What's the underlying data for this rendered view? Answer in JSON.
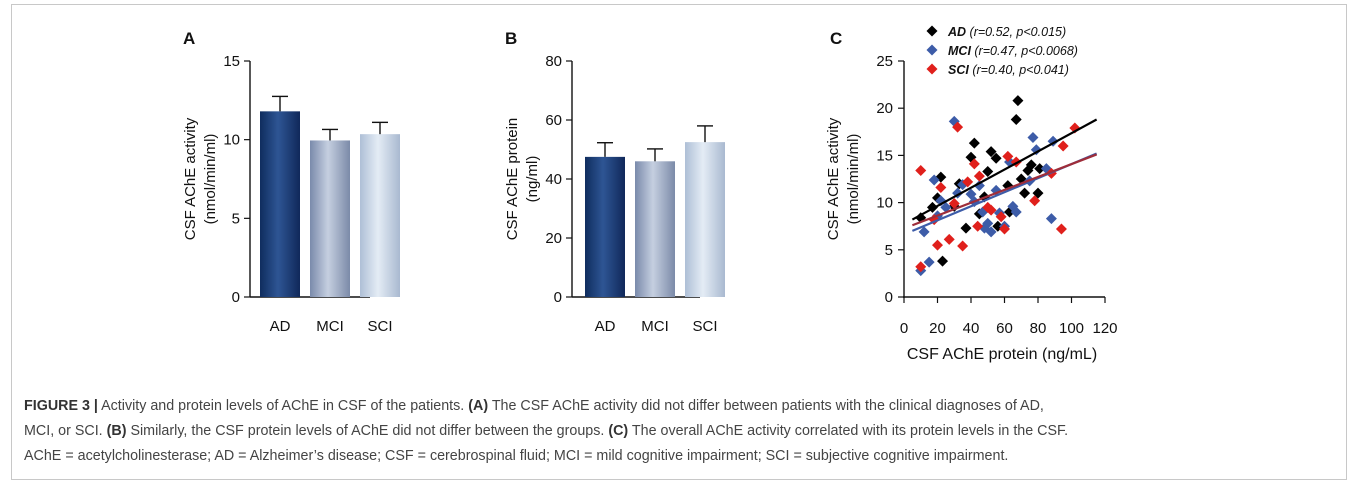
{
  "chart_data": [
    {
      "panel": "A",
      "type": "bar",
      "categories": [
        "AD",
        "MCI",
        "SCI"
      ],
      "values": [
        11.8,
        9.95,
        10.35
      ],
      "errors": [
        0.95,
        0.7,
        0.75
      ],
      "ylabel": "CSF AChE activity\n(nmol/min/ml)",
      "ylim": [
        0,
        15
      ],
      "yticks": [
        "0",
        "5",
        "10",
        "15"
      ],
      "colors": [
        "#1e3f78",
        "#9ba9c4",
        "#c9d6e6"
      ]
    },
    {
      "panel": "B",
      "type": "bar",
      "categories": [
        "AD",
        "MCI",
        "SCI"
      ],
      "values": [
        47.5,
        46,
        52.5
      ],
      "errors": [
        4.8,
        4.2,
        5.5
      ],
      "ylabel": "CSF AChE protein\n(ng/ml)",
      "ylim": [
        0,
        80
      ],
      "yticks": [
        "0",
        "20",
        "40",
        "60",
        "80"
      ],
      "colors": [
        "#1e3f78",
        "#9ba9c4",
        "#c9d6e6"
      ]
    },
    {
      "panel": "C",
      "type": "scatter",
      "xlabel": "CSF AChE protein  (ng/mL)",
      "ylabel": "CSF AChE activity\n(nmol/min/ml)",
      "xlim": [
        0,
        120
      ],
      "ylim": [
        0,
        25
      ],
      "xticks": [
        "0",
        "20",
        "40",
        "60",
        "80",
        "100",
        "120"
      ],
      "yticks": [
        "0",
        "5",
        "10",
        "15",
        "20",
        "25"
      ],
      "legend_position": "top",
      "series": [
        {
          "name": "AD",
          "stat": "(r=0.52, p<0.015)",
          "color": "#000000",
          "line_color": "#000000",
          "fit": [
            [
              5,
              8.2
            ],
            [
              115,
              18.8
            ]
          ],
          "points": [
            [
              10,
              8.4
            ],
            [
              17,
              9.5
            ],
            [
              20,
              10.5
            ],
            [
              22,
              12.7
            ],
            [
              23,
              3.8
            ],
            [
              30,
              9.6
            ],
            [
              33,
              12.0
            ],
            [
              37,
              7.3
            ],
            [
              40,
              14.8
            ],
            [
              42,
              16.3
            ],
            [
              45,
              8.8
            ],
            [
              48,
              10.6
            ],
            [
              50,
              13.3
            ],
            [
              52,
              15.4
            ],
            [
              55,
              14.7
            ],
            [
              56,
              7.5
            ],
            [
              62,
              11.8
            ],
            [
              63,
              9.0
            ],
            [
              67,
              18.8
            ],
            [
              68,
              20.8
            ],
            [
              70,
              12.5
            ],
            [
              72,
              11.0
            ],
            [
              74,
              13.4
            ],
            [
              76,
              14.0
            ],
            [
              80,
              11.0
            ],
            [
              81,
              13.6
            ]
          ]
        },
        {
          "name": "MCI",
          "stat": "(r=0.47, p<0.0068)",
          "color": "#3d5ca8",
          "line_color": "#3d5ca8",
          "fit": [
            [
              5,
              7.0
            ],
            [
              115,
              15.2
            ]
          ],
          "points": [
            [
              10,
              2.8
            ],
            [
              12,
              6.9
            ],
            [
              15,
              3.7
            ],
            [
              18,
              12.4
            ],
            [
              20,
              8.6
            ],
            [
              22,
              10.2
            ],
            [
              25,
              9.5
            ],
            [
              30,
              18.6
            ],
            [
              32,
              11.0
            ],
            [
              35,
              11.9
            ],
            [
              40,
              10.9
            ],
            [
              42,
              10.1
            ],
            [
              45,
              11.8
            ],
            [
              47,
              9.0
            ],
            [
              48,
              7.3
            ],
            [
              50,
              7.8
            ],
            [
              52,
              6.9
            ],
            [
              55,
              11.3
            ],
            [
              57,
              8.9
            ],
            [
              60,
              7.5
            ],
            [
              63,
              14.3
            ],
            [
              65,
              9.6
            ],
            [
              67,
              9.0
            ],
            [
              75,
              12.3
            ],
            [
              77,
              16.9
            ],
            [
              79,
              15.6
            ],
            [
              85,
              13.6
            ],
            [
              88,
              8.3
            ],
            [
              89,
              16.5
            ]
          ]
        },
        {
          "name": "SCI",
          "stat": "(r=0.40, p<0.041)",
          "color": "#e0201c",
          "line_color": "#9e2d3a",
          "fit": [
            [
              5,
              7.6
            ],
            [
              115,
              15.1
            ]
          ],
          "points": [
            [
              10,
              13.4
            ],
            [
              10,
              3.2
            ],
            [
              18,
              8.2
            ],
            [
              20,
              5.5
            ],
            [
              22,
              11.6
            ],
            [
              27,
              6.1
            ],
            [
              30,
              9.9
            ],
            [
              32,
              18.0
            ],
            [
              35,
              5.4
            ],
            [
              38,
              12.2
            ],
            [
              42,
              14.1
            ],
            [
              44,
              7.5
            ],
            [
              45,
              12.8
            ],
            [
              50,
              9.5
            ],
            [
              52,
              9.2
            ],
            [
              58,
              8.5
            ],
            [
              60,
              7.2
            ],
            [
              62,
              14.9
            ],
            [
              67,
              14.3
            ],
            [
              78,
              10.2
            ],
            [
              88,
              13.1
            ],
            [
              94,
              7.2
            ],
            [
              95,
              16.0
            ],
            [
              102,
              17.9
            ]
          ]
        }
      ]
    }
  ],
  "panel_labels": [
    "A",
    "B",
    "C"
  ],
  "caption": {
    "figure_label": "FIGURE 3 |",
    "line1_a": " Activity and protein levels of AChE in CSF of the patients. ",
    "label_a": "(A)",
    "line1_b": " The CSF AChE activity did not differ between patients with the clinical diagnoses of AD,",
    "line2_a": "MCI, or SCI. ",
    "label_b": "(B)",
    "line2_b": " Similarly, the CSF protein levels of AChE did not differ between the groups. ",
    "label_c": "(C)",
    "line2_c": " The overall AChE activity correlated with its protein levels in the CSF.",
    "line3": "AChE = acetylcholinesterase; AD = Alzheimer’s disease; CSF = cerebrospinal fluid; MCI = mild cognitive impairment; SCI = subjective cognitive impairment."
  }
}
